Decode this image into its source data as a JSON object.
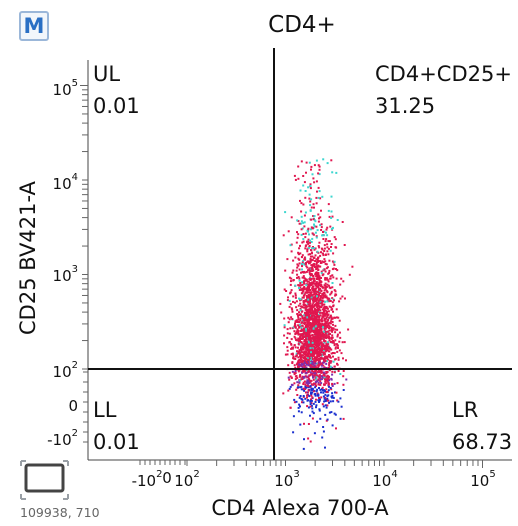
{
  "badge": "M",
  "footer_text": "109938, 710",
  "chart_data": {
    "type": "scatter",
    "title": "CD4+",
    "xlabel": "CD4 Alexa 700-A",
    "ylabel": "CD25 BV421-A",
    "x_scale": "biexponential",
    "y_scale": "biexponential",
    "x_ticks": [
      "-10²",
      "0",
      "10²",
      "10³",
      "10⁴",
      "10⁵"
    ],
    "y_ticks": [
      "10⁵",
      "10⁴",
      "10³",
      "10²",
      "0",
      "-10²"
    ],
    "gate": {
      "x": 800,
      "y": 100
    },
    "quadrants": [
      {
        "name": "UL",
        "value": "0.01"
      },
      {
        "name": "CD4+CD25+",
        "value": "31.25"
      },
      {
        "name": "LL",
        "value": "0.01"
      },
      {
        "name": "LR",
        "value": "68.73"
      }
    ],
    "population": {
      "x_center": 1900,
      "x_range": [
        900,
        4500
      ],
      "y_range": [
        -200,
        15000
      ]
    },
    "colors": {
      "low": "#1a2fcf",
      "mid": "#e0174f",
      "high": "#3dd6cf"
    },
    "grid": false
  }
}
